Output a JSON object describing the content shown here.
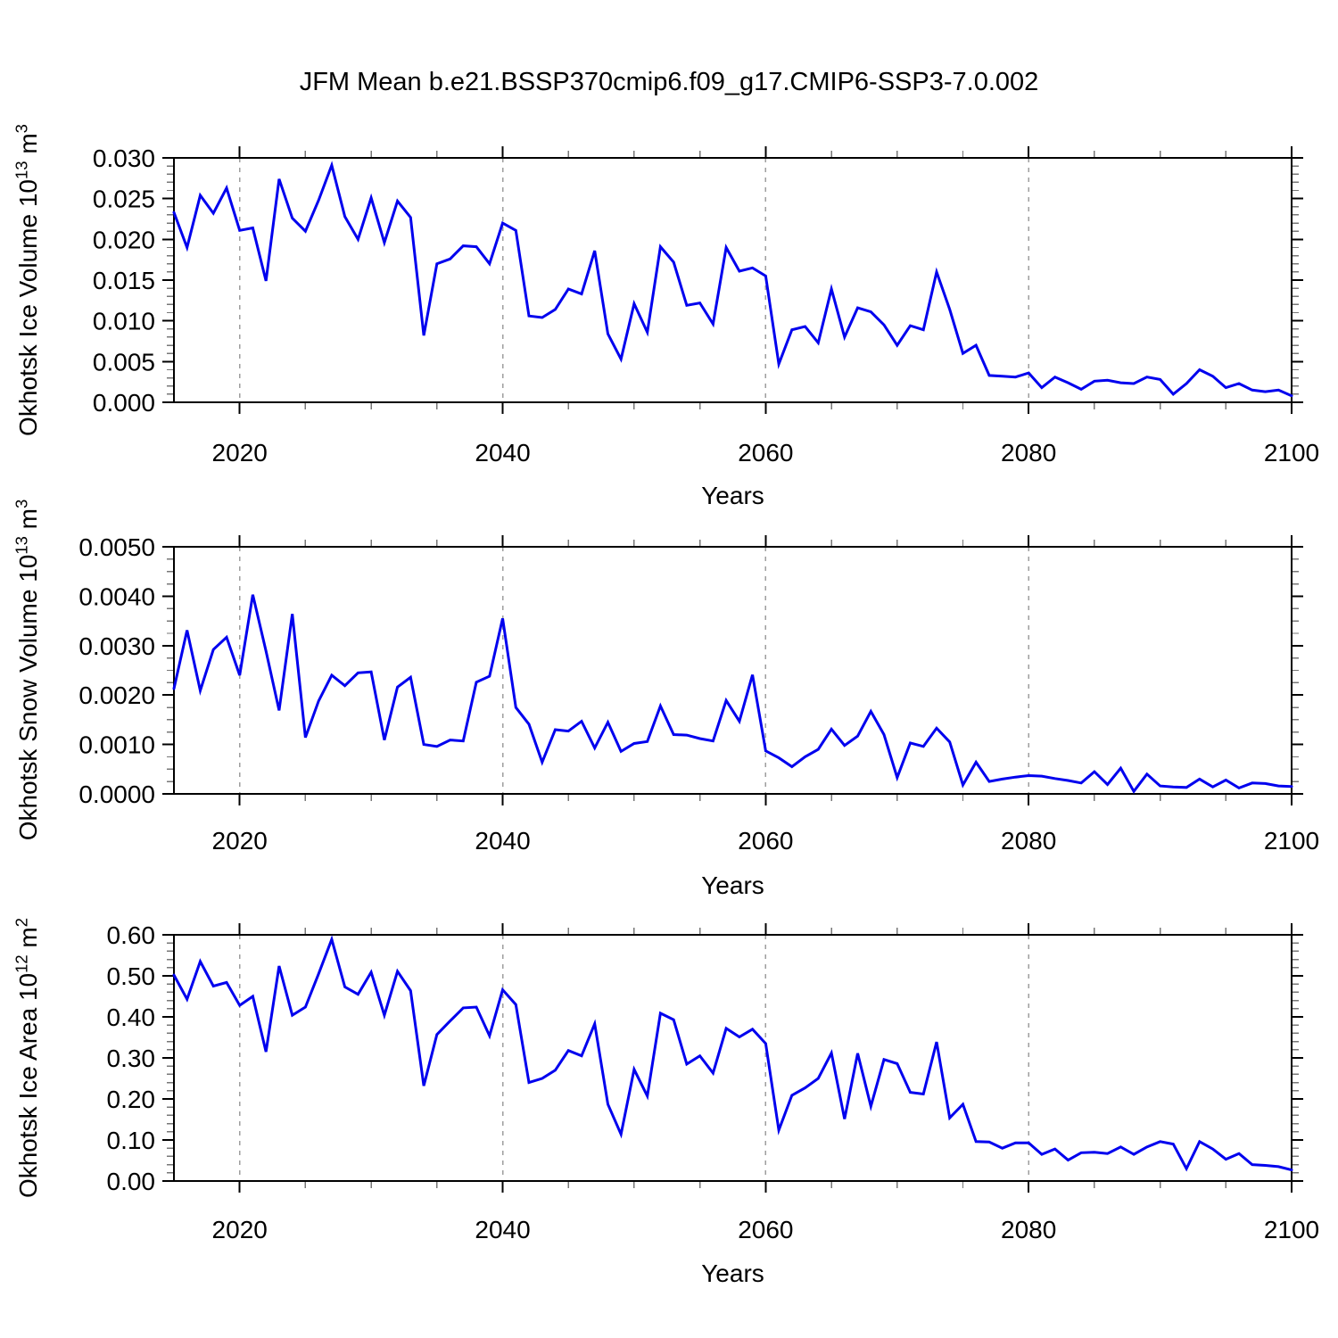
{
  "title": "JFM Mean b.e21.BSSP370cmip6.f09_g17.CMIP6-SSP3-7.0.002",
  "line_color": "#0000EE",
  "gridline_color": "#9e9e9e",
  "axis_color": "#000000",
  "minor_tick_color": "#777777",
  "chart_data": [
    {
      "type": "line",
      "name": "okhotsk-ice-volume",
      "ylabel_parts": [
        {
          "t": "Okhotsk Ice Volume 10"
        },
        {
          "t": "13",
          "sup": true
        },
        {
          "t": " m"
        },
        {
          "t": "3",
          "sup": true
        }
      ],
      "xlabel": "Years",
      "xlim": [
        2015,
        2100
      ],
      "ylim": [
        0.0,
        0.03
      ],
      "xticks": {
        "major": [
          2020,
          2040,
          2060,
          2080,
          2100
        ],
        "labels": [
          "2020",
          "2040",
          "2060",
          "2080",
          "2100"
        ],
        "minor_step": 5
      },
      "yticks": {
        "major": [
          0.0,
          0.005,
          0.01,
          0.015,
          0.02,
          0.025,
          0.03
        ],
        "labels": [
          "0.000",
          "0.005",
          "0.010",
          "0.015",
          "0.020",
          "0.025",
          "0.030"
        ],
        "minor_step": 0.001
      },
      "gridlines_x": [
        2020,
        2040,
        2060,
        2080
      ],
      "grid": "vertical-dashed",
      "legend": "none",
      "x": [
        2015,
        2016,
        2017,
        2018,
        2019,
        2020,
        2021,
        2022,
        2023,
        2024,
        2025,
        2026,
        2027,
        2028,
        2029,
        2030,
        2031,
        2032,
        2033,
        2034,
        2035,
        2036,
        2037,
        2038,
        2039,
        2040,
        2041,
        2042,
        2043,
        2044,
        2045,
        2046,
        2047,
        2048,
        2049,
        2050,
        2051,
        2052,
        2053,
        2054,
        2055,
        2056,
        2057,
        2058,
        2059,
        2060,
        2061,
        2062,
        2063,
        2064,
        2065,
        2066,
        2067,
        2068,
        2069,
        2070,
        2071,
        2072,
        2073,
        2074,
        2075,
        2076,
        2077,
        2078,
        2079,
        2080,
        2081,
        2082,
        2083,
        2084,
        2085,
        2086,
        2087,
        2088,
        2089,
        2090,
        2091,
        2092,
        2093,
        2094,
        2095,
        2096,
        2097,
        2098,
        2099,
        2100
      ],
      "values": [
        0.0233,
        0.019,
        0.0254,
        0.0232,
        0.0263,
        0.0211,
        0.0214,
        0.0149,
        0.0274,
        0.0226,
        0.021,
        0.0248,
        0.0291,
        0.0228,
        0.02,
        0.0251,
        0.0196,
        0.0247,
        0.0227,
        0.0082,
        0.017,
        0.0176,
        0.0192,
        0.0191,
        0.017,
        0.022,
        0.0211,
        0.0106,
        0.0104,
        0.0114,
        0.0139,
        0.0133,
        0.0186,
        0.0084,
        0.0053,
        0.0121,
        0.0086,
        0.0191,
        0.0172,
        0.0119,
        0.0122,
        0.0096,
        0.019,
        0.0161,
        0.0165,
        0.0155,
        0.0047,
        0.0089,
        0.0093,
        0.0073,
        0.0139,
        0.008,
        0.0116,
        0.0111,
        0.0095,
        0.007,
        0.0094,
        0.0089,
        0.016,
        0.0114,
        0.006,
        0.007,
        0.0033,
        0.0032,
        0.0031,
        0.0036,
        0.0018,
        0.0031,
        0.0024,
        0.0016,
        0.0026,
        0.0027,
        0.0024,
        0.0023,
        0.0031,
        0.0028,
        0.001,
        0.0023,
        0.004,
        0.0032,
        0.0018,
        0.0023,
        0.0015,
        0.0013,
        0.0015,
        0.0008
      ]
    },
    {
      "type": "line",
      "name": "okhotsk-snow-volume",
      "ylabel_parts": [
        {
          "t": "Okhotsk Snow Volume 10"
        },
        {
          "t": "13",
          "sup": true
        },
        {
          "t": " m"
        },
        {
          "t": "3",
          "sup": true
        }
      ],
      "xlabel": "Years",
      "xlim": [
        2015,
        2100
      ],
      "ylim": [
        0.0,
        0.005
      ],
      "xticks": {
        "major": [
          2020,
          2040,
          2060,
          2080,
          2100
        ],
        "labels": [
          "2020",
          "2040",
          "2060",
          "2080",
          "2100"
        ],
        "minor_step": 5
      },
      "yticks": {
        "major": [
          0.0,
          0.001,
          0.002,
          0.003,
          0.004,
          0.005
        ],
        "labels": [
          "0.0000",
          "0.0010",
          "0.0020",
          "0.0030",
          "0.0040",
          "0.0050"
        ],
        "minor_step": 0.00025
      },
      "gridlines_x": [
        2020,
        2040,
        2060,
        2080
      ],
      "grid": "vertical-dashed",
      "legend": "none",
      "x": [
        2015,
        2016,
        2017,
        2018,
        2019,
        2020,
        2021,
        2022,
        2023,
        2024,
        2025,
        2026,
        2027,
        2028,
        2029,
        2030,
        2031,
        2032,
        2033,
        2034,
        2035,
        2036,
        2037,
        2038,
        2039,
        2040,
        2041,
        2042,
        2043,
        2044,
        2045,
        2046,
        2047,
        2048,
        2049,
        2050,
        2051,
        2052,
        2053,
        2054,
        2055,
        2056,
        2057,
        2058,
        2059,
        2060,
        2061,
        2062,
        2063,
        2064,
        2065,
        2066,
        2067,
        2068,
        2069,
        2070,
        2071,
        2072,
        2073,
        2074,
        2075,
        2076,
        2077,
        2078,
        2079,
        2080,
        2081,
        2082,
        2083,
        2084,
        2085,
        2086,
        2087,
        2088,
        2089,
        2090,
        2091,
        2092,
        2093,
        2094,
        2095,
        2096,
        2097,
        2098,
        2099,
        2100
      ],
      "values": [
        0.00213,
        0.00331,
        0.00209,
        0.00292,
        0.00317,
        0.0024,
        0.00403,
        0.00289,
        0.00169,
        0.00364,
        0.00114,
        0.00188,
        0.0024,
        0.00219,
        0.00245,
        0.00247,
        0.00109,
        0.00216,
        0.00236,
        0.001,
        0.00096,
        0.00109,
        0.00107,
        0.00226,
        0.00238,
        0.00355,
        0.00175,
        0.00141,
        0.00064,
        0.0013,
        0.00127,
        0.00147,
        0.00093,
        0.00145,
        0.00086,
        0.00102,
        0.00106,
        0.00178,
        0.0012,
        0.00119,
        0.00112,
        0.00107,
        0.00189,
        0.00147,
        0.00241,
        0.00087,
        0.00073,
        0.00055,
        0.00075,
        0.0009,
        0.00131,
        0.00098,
        0.00117,
        0.00167,
        0.0012,
        0.00033,
        0.00103,
        0.00096,
        0.00133,
        0.00105,
        0.00018,
        0.00064,
        0.00025,
        0.0003,
        0.00034,
        0.00037,
        0.00036,
        0.00031,
        0.00027,
        0.00022,
        0.00045,
        0.00019,
        0.00052,
        5e-05,
        0.0004,
        0.00016,
        0.00014,
        0.00013,
        0.0003,
        0.00014,
        0.00028,
        0.00012,
        0.00022,
        0.00021,
        0.00016,
        0.00015
      ]
    },
    {
      "type": "line",
      "name": "okhotsk-ice-area",
      "ylabel_parts": [
        {
          "t": "Okhotsk Ice Area 10"
        },
        {
          "t": "12",
          "sup": true
        },
        {
          "t": " m"
        },
        {
          "t": "2",
          "sup": true
        }
      ],
      "xlabel": "Years",
      "xlim": [
        2015,
        2100
      ],
      "ylim": [
        0.0,
        0.6
      ],
      "xticks": {
        "major": [
          2020,
          2040,
          2060,
          2080,
          2100
        ],
        "labels": [
          "2020",
          "2040",
          "2060",
          "2080",
          "2100"
        ],
        "minor_step": 5
      },
      "yticks": {
        "major": [
          0.0,
          0.1,
          0.2,
          0.3,
          0.4,
          0.5,
          0.6
        ],
        "labels": [
          "0.00",
          "0.10",
          "0.20",
          "0.30",
          "0.40",
          "0.50",
          "0.60"
        ],
        "minor_step": 0.02
      },
      "gridlines_x": [
        2020,
        2040,
        2060,
        2080
      ],
      "grid": "vertical-dashed",
      "legend": "none",
      "x": [
        2015,
        2016,
        2017,
        2018,
        2019,
        2020,
        2021,
        2022,
        2023,
        2024,
        2025,
        2026,
        2027,
        2028,
        2029,
        2030,
        2031,
        2032,
        2033,
        2034,
        2035,
        2036,
        2037,
        2038,
        2039,
        2040,
        2041,
        2042,
        2043,
        2044,
        2045,
        2046,
        2047,
        2048,
        2049,
        2050,
        2051,
        2052,
        2053,
        2054,
        2055,
        2056,
        2057,
        2058,
        2059,
        2060,
        2061,
        2062,
        2063,
        2064,
        2065,
        2066,
        2067,
        2068,
        2069,
        2070,
        2071,
        2072,
        2073,
        2074,
        2075,
        2076,
        2077,
        2078,
        2079,
        2080,
        2081,
        2082,
        2083,
        2084,
        2085,
        2086,
        2087,
        2088,
        2089,
        2090,
        2091,
        2092,
        2093,
        2094,
        2095,
        2096,
        2097,
        2098,
        2099,
        2100
      ],
      "values": [
        0.502,
        0.443,
        0.535,
        0.475,
        0.484,
        0.428,
        0.45,
        0.315,
        0.524,
        0.404,
        0.424,
        0.505,
        0.589,
        0.473,
        0.455,
        0.509,
        0.404,
        0.511,
        0.464,
        0.232,
        0.357,
        0.39,
        0.422,
        0.424,
        0.354,
        0.466,
        0.43,
        0.24,
        0.25,
        0.27,
        0.318,
        0.305,
        0.383,
        0.187,
        0.114,
        0.272,
        0.207,
        0.409,
        0.393,
        0.285,
        0.305,
        0.263,
        0.372,
        0.351,
        0.37,
        0.335,
        0.124,
        0.209,
        0.227,
        0.25,
        0.312,
        0.151,
        0.311,
        0.182,
        0.296,
        0.286,
        0.216,
        0.212,
        0.339,
        0.154,
        0.187,
        0.096,
        0.095,
        0.08,
        0.093,
        0.093,
        0.065,
        0.078,
        0.051,
        0.069,
        0.07,
        0.067,
        0.083,
        0.065,
        0.083,
        0.096,
        0.09,
        0.03,
        0.096,
        0.078,
        0.053,
        0.067,
        0.04,
        0.038,
        0.035,
        0.027
      ]
    }
  ]
}
